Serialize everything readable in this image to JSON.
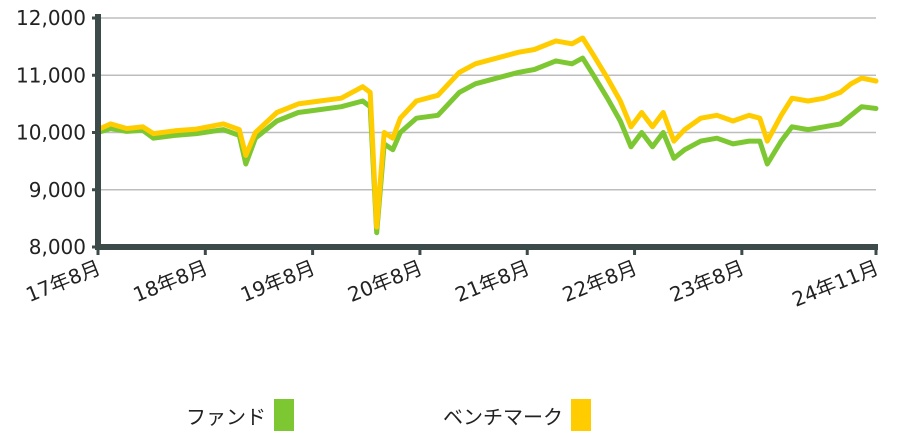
{
  "chart_data": {
    "type": "line",
    "y_tick_labels": [
      "8,000",
      "9,000",
      "10,000",
      "11,000",
      "12,000"
    ],
    "y_ticks": [
      8000,
      9000,
      10000,
      11000,
      12000
    ],
    "ylim": [
      8000,
      12000
    ],
    "x_tick_labels": [
      "17年8月",
      "18年8月",
      "19年8月",
      "20年8月",
      "21年8月",
      "22年8月",
      "23年8月",
      "24年11月"
    ],
    "x_ticks": [
      2017.583,
      2018.583,
      2019.583,
      2020.583,
      2021.583,
      2022.583,
      2023.583,
      2024.833
    ],
    "xlim": [
      2017.583,
      2024.833
    ],
    "grid": "horizontal",
    "legend_position": "bottom",
    "series": [
      {
        "name": "ファンド",
        "color": "#7dc832",
        "points": [
          [
            2017.583,
            10000
          ],
          [
            2017.7,
            10070
          ],
          [
            2017.85,
            10020
          ],
          [
            2018.0,
            10040
          ],
          [
            2018.1,
            9900
          ],
          [
            2018.3,
            9950
          ],
          [
            2018.5,
            9980
          ],
          [
            2018.75,
            10050
          ],
          [
            2018.9,
            9950
          ],
          [
            2018.96,
            9450
          ],
          [
            2019.05,
            9900
          ],
          [
            2019.25,
            10200
          ],
          [
            2019.45,
            10350
          ],
          [
            2019.65,
            10400
          ],
          [
            2019.85,
            10450
          ],
          [
            2020.05,
            10550
          ],
          [
            2020.12,
            10450
          ],
          [
            2020.18,
            8250
          ],
          [
            2020.25,
            9800
          ],
          [
            2020.33,
            9700
          ],
          [
            2020.4,
            10000
          ],
          [
            2020.55,
            10250
          ],
          [
            2020.75,
            10300
          ],
          [
            2020.95,
            10700
          ],
          [
            2021.1,
            10850
          ],
          [
            2021.3,
            10950
          ],
          [
            2021.5,
            11050
          ],
          [
            2021.65,
            11100
          ],
          [
            2021.85,
            11250
          ],
          [
            2022.0,
            11200
          ],
          [
            2022.1,
            11300
          ],
          [
            2022.2,
            11000
          ],
          [
            2022.33,
            10600
          ],
          [
            2022.45,
            10200
          ],
          [
            2022.55,
            9750
          ],
          [
            2022.65,
            10000
          ],
          [
            2022.75,
            9750
          ],
          [
            2022.85,
            10000
          ],
          [
            2022.95,
            9550
          ],
          [
            2023.05,
            9700
          ],
          [
            2023.2,
            9850
          ],
          [
            2023.35,
            9900
          ],
          [
            2023.5,
            9800
          ],
          [
            2023.65,
            9850
          ],
          [
            2023.75,
            9850
          ],
          [
            2023.82,
            9450
          ],
          [
            2023.95,
            9850
          ],
          [
            2024.05,
            10100
          ],
          [
            2024.2,
            10050
          ],
          [
            2024.35,
            10100
          ],
          [
            2024.5,
            10150
          ],
          [
            2024.6,
            10300
          ],
          [
            2024.7,
            10450
          ],
          [
            2024.833,
            10420
          ]
        ]
      },
      {
        "name": "ベンチマーク",
        "color": "#ffcc00",
        "points": [
          [
            2017.583,
            10050
          ],
          [
            2017.7,
            10150
          ],
          [
            2017.85,
            10070
          ],
          [
            2018.0,
            10100
          ],
          [
            2018.1,
            9980
          ],
          [
            2018.3,
            10030
          ],
          [
            2018.5,
            10060
          ],
          [
            2018.75,
            10150
          ],
          [
            2018.9,
            10050
          ],
          [
            2018.96,
            9600
          ],
          [
            2019.05,
            10000
          ],
          [
            2019.25,
            10350
          ],
          [
            2019.45,
            10500
          ],
          [
            2019.65,
            10550
          ],
          [
            2019.85,
            10600
          ],
          [
            2020.05,
            10800
          ],
          [
            2020.12,
            10700
          ],
          [
            2020.18,
            8350
          ],
          [
            2020.25,
            10000
          ],
          [
            2020.33,
            9900
          ],
          [
            2020.4,
            10250
          ],
          [
            2020.55,
            10550
          ],
          [
            2020.75,
            10650
          ],
          [
            2020.95,
            11050
          ],
          [
            2021.1,
            11200
          ],
          [
            2021.3,
            11300
          ],
          [
            2021.5,
            11400
          ],
          [
            2021.65,
            11450
          ],
          [
            2021.85,
            11600
          ],
          [
            2022.0,
            11550
          ],
          [
            2022.1,
            11650
          ],
          [
            2022.2,
            11350
          ],
          [
            2022.33,
            10950
          ],
          [
            2022.45,
            10550
          ],
          [
            2022.55,
            10100
          ],
          [
            2022.65,
            10350
          ],
          [
            2022.75,
            10100
          ],
          [
            2022.85,
            10350
          ],
          [
            2022.95,
            9850
          ],
          [
            2023.05,
            10050
          ],
          [
            2023.2,
            10250
          ],
          [
            2023.35,
            10300
          ],
          [
            2023.5,
            10200
          ],
          [
            2023.65,
            10300
          ],
          [
            2023.75,
            10250
          ],
          [
            2023.82,
            9850
          ],
          [
            2023.95,
            10300
          ],
          [
            2024.05,
            10600
          ],
          [
            2024.2,
            10550
          ],
          [
            2024.35,
            10600
          ],
          [
            2024.5,
            10700
          ],
          [
            2024.6,
            10850
          ],
          [
            2024.7,
            10950
          ],
          [
            2024.833,
            10900
          ]
        ]
      }
    ]
  }
}
